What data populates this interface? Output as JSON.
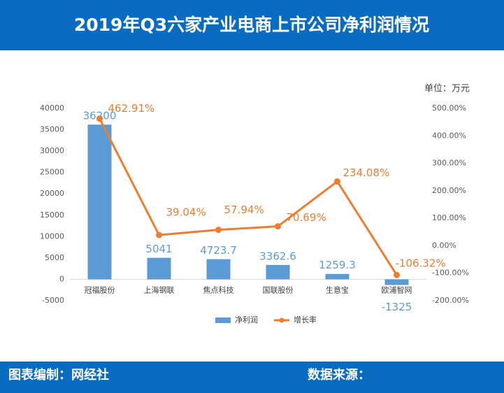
{
  "chart_data": {
    "type": "bar_line",
    "title": "2019年Q3六家产业电商上市公司净利润情况",
    "unit": "单位：万元",
    "categories": [
      "冠福股份",
      "上海钢联",
      "焦点科技",
      "国联股份",
      "生意宝",
      "欧浦智网"
    ],
    "series": [
      {
        "name": "净利润",
        "color": "#5b9bd5",
        "values": [
          36200,
          5041,
          4723.7,
          3362.6,
          1259.3,
          -1325
        ]
      },
      {
        "name": "增长率",
        "color": "#ed7d31",
        "axis": "y2",
        "values": [
          462.91,
          39.04,
          57.94,
          70.69,
          234.08,
          -106.32
        ],
        "value_labels": [
          "462.91%",
          "39.04%",
          "57.94%",
          "70.69%",
          "234.08%",
          "-106.32%"
        ]
      }
    ],
    "ylim": [
      -5000,
      40000
    ],
    "yticks": [
      -5000,
      0,
      5000,
      10000,
      15000,
      20000,
      25000,
      30000,
      35000,
      40000
    ],
    "y2lim": [
      -200,
      500
    ],
    "y2ticks": [
      {
        "value": -200,
        "label": "-200.00%"
      },
      {
        "value": -100,
        "label": "-100.00%"
      },
      {
        "value": 0,
        "label": "0.00%"
      },
      {
        "value": 100,
        "label": "100.00%"
      },
      {
        "value": 200,
        "label": "200.00%"
      },
      {
        "value": 300,
        "label": "300.00%"
      },
      {
        "value": 400,
        "label": "400.00%"
      },
      {
        "value": 500,
        "label": "500.00%"
      }
    ]
  },
  "footer": {
    "left": "图表编制：网经社",
    "right": "数据来源："
  }
}
